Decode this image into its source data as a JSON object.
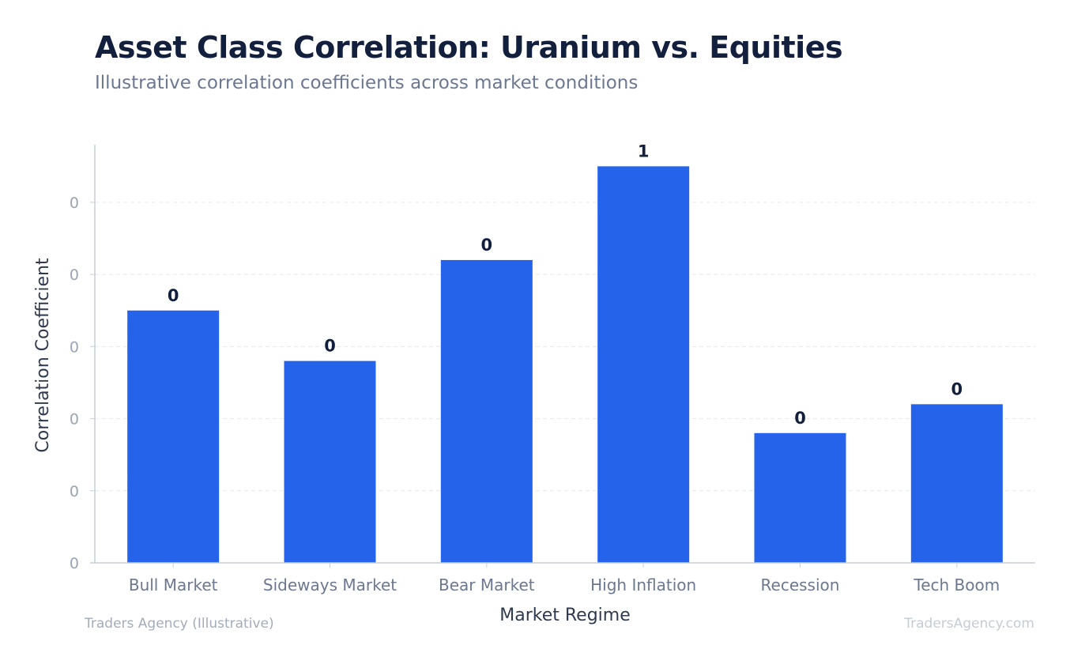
{
  "chart_data": {
    "type": "bar",
    "title": "Asset Class Correlation: Uranium vs. Equities",
    "subtitle": "Illustrative correlation coefficients across market conditions",
    "xlabel": "Market Regime",
    "ylabel": "Correlation Coefficient",
    "categories": [
      "Bull Market",
      "Sideways Market",
      "Bear Market",
      "High Inflation",
      "Recession",
      "Tech Boom"
    ],
    "values": [
      0.35,
      0.28,
      0.42,
      0.55,
      0.18,
      0.22
    ],
    "value_labels": [
      "0",
      "0",
      "0",
      "1",
      "0",
      "0"
    ],
    "yticks": [
      0,
      0.1,
      0.2,
      0.3,
      0.4,
      0.5
    ],
    "ytick_labels": [
      "0",
      "0",
      "0",
      "0",
      "0",
      "0"
    ],
    "ylim": [
      0,
      0.58
    ],
    "grid": true,
    "legend": false,
    "bar_color": "#2563eb"
  },
  "footer": {
    "left": "Traders Agency (Illustrative)",
    "right": "TradersAgency.com"
  }
}
